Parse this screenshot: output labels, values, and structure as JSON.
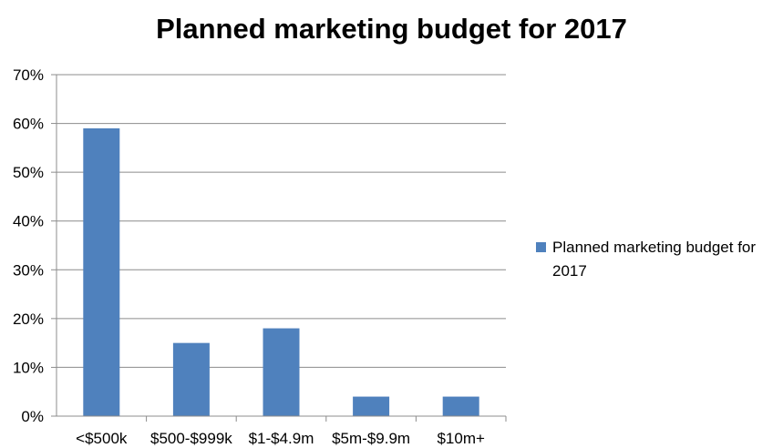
{
  "chart_data": {
    "type": "bar",
    "title": "Planned marketing budget for 2017",
    "xlabel": "",
    "ylabel": "",
    "categories": [
      "<$500k",
      "$500-$999k",
      "$1-$4.9m",
      "$5m-$9.9m",
      "$10m+"
    ],
    "series": [
      {
        "name": "Planned marketing budget for 2017",
        "values": [
          59,
          15,
          18,
          4,
          4
        ],
        "color": "#4f81bd"
      }
    ],
    "ylim": [
      0,
      70
    ],
    "yticks": [
      0,
      10,
      20,
      30,
      40,
      50,
      60,
      70
    ],
    "ytick_labels": [
      "0%",
      "10%",
      "20%",
      "30%",
      "40%",
      "50%",
      "60%",
      "70%"
    ],
    "grid": true,
    "legend_position": "right"
  }
}
